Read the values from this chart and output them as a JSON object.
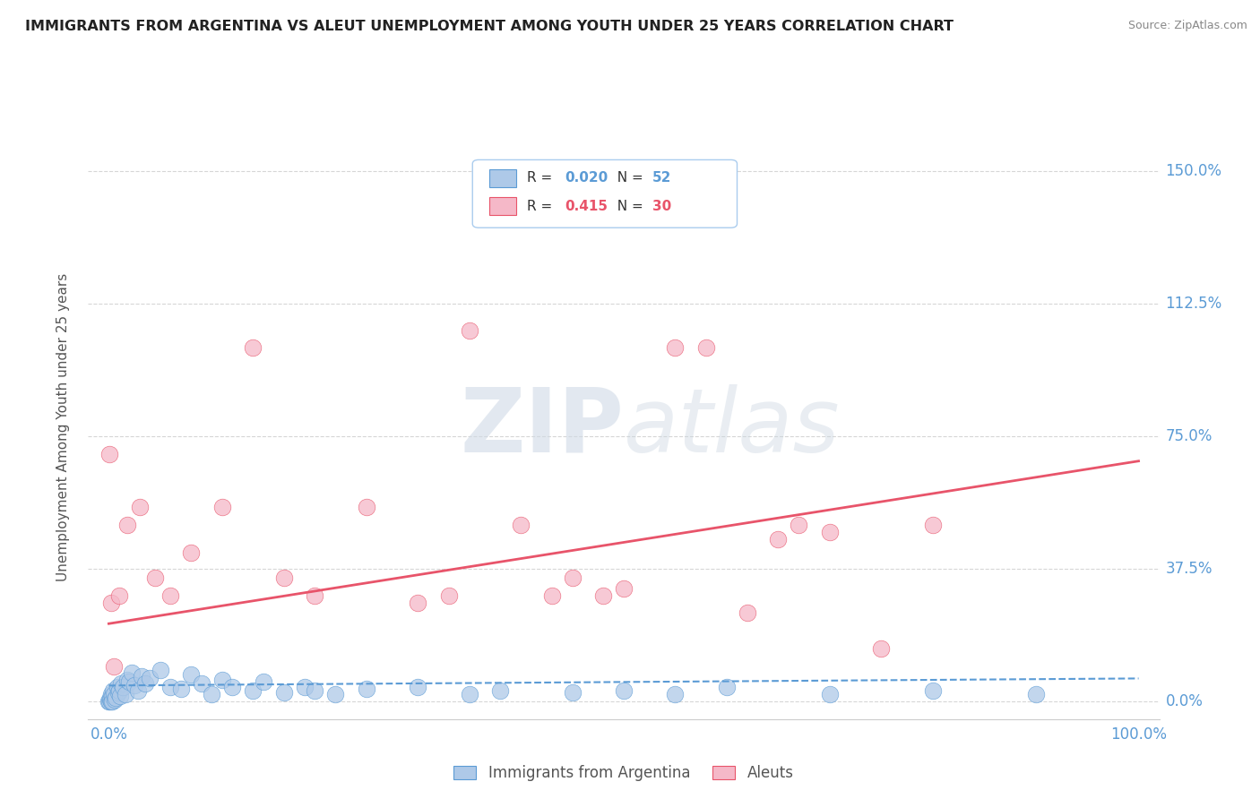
{
  "title": "IMMIGRANTS FROM ARGENTINA VS ALEUT UNEMPLOYMENT AMONG YOUTH UNDER 25 YEARS CORRELATION CHART",
  "source": "Source: ZipAtlas.com",
  "ylabel": "Unemployment Among Youth under 25 years",
  "ytick_values": [
    0.0,
    37.5,
    75.0,
    112.5,
    150.0
  ],
  "ytick_labels": [
    "0.0%",
    "37.5%",
    "75.0%",
    "112.5%",
    "150.0%"
  ],
  "xtick_values": [
    0.0,
    100.0
  ],
  "xtick_labels": [
    "0.0%",
    "100.0%"
  ],
  "xlim": [
    -2.0,
    102.0
  ],
  "ylim": [
    -5.0,
    160.0
  ],
  "legend_label1": "Immigrants from Argentina",
  "legend_label2": "Aleuts",
  "series1_color": "#aec9e8",
  "series2_color": "#f5b8c8",
  "trendline1_color": "#5b9bd5",
  "trendline2_color": "#e8546a",
  "background_color": "#ffffff",
  "watermark_zip": "ZIP",
  "watermark_atlas": "atlas",
  "series1_x": [
    0.0,
    0.05,
    0.1,
    0.15,
    0.2,
    0.25,
    0.3,
    0.35,
    0.4,
    0.5,
    0.6,
    0.7,
    0.8,
    0.9,
    1.0,
    1.1,
    1.2,
    1.4,
    1.6,
    1.8,
    2.0,
    2.2,
    2.5,
    2.8,
    3.2,
    3.5,
    4.0,
    5.0,
    6.0,
    7.0,
    8.0,
    9.0,
    10.0,
    11.0,
    12.0,
    14.0,
    15.0,
    17.0,
    19.0,
    20.0,
    22.0,
    25.0,
    30.0,
    35.0,
    38.0,
    45.0,
    50.0,
    55.0,
    60.0,
    70.0,
    80.0,
    90.0
  ],
  "series1_y": [
    0.0,
    0.0,
    0.5,
    1.0,
    0.0,
    2.0,
    1.5,
    0.0,
    3.0,
    2.0,
    0.5,
    1.0,
    4.0,
    2.5,
    3.0,
    1.5,
    5.0,
    4.0,
    2.0,
    6.0,
    5.5,
    8.0,
    4.5,
    3.0,
    7.0,
    5.0,
    6.5,
    9.0,
    4.0,
    3.5,
    7.5,
    5.0,
    2.0,
    6.0,
    4.0,
    3.0,
    5.5,
    2.5,
    4.0,
    3.0,
    2.0,
    3.5,
    4.0,
    2.0,
    3.0,
    2.5,
    3.0,
    2.0,
    4.0,
    2.0,
    3.0,
    2.0
  ],
  "series2_x": [
    0.05,
    0.2,
    0.5,
    1.0,
    1.8,
    3.0,
    4.5,
    6.0,
    8.0,
    11.0,
    14.0,
    17.0,
    20.0,
    25.0,
    30.0,
    33.0,
    35.0,
    40.0,
    43.0,
    45.0,
    48.0,
    50.0,
    55.0,
    58.0,
    62.0,
    65.0,
    67.0,
    70.0,
    75.0,
    80.0
  ],
  "series2_y": [
    70.0,
    28.0,
    10.0,
    30.0,
    50.0,
    55.0,
    35.0,
    30.0,
    42.0,
    55.0,
    100.0,
    35.0,
    30.0,
    55.0,
    28.0,
    30.0,
    105.0,
    50.0,
    30.0,
    35.0,
    30.0,
    32.0,
    100.0,
    100.0,
    25.0,
    46.0,
    50.0,
    48.0,
    15.0,
    50.0
  ],
  "trendline1_x": [
    0.0,
    100.0
  ],
  "trendline1_y": [
    4.5,
    6.5
  ],
  "trendline2_x": [
    0.0,
    100.0
  ],
  "trendline2_y": [
    22.0,
    68.0
  ],
  "r1": "0.020",
  "n1": "52",
  "r2": "0.415",
  "n2": "30"
}
